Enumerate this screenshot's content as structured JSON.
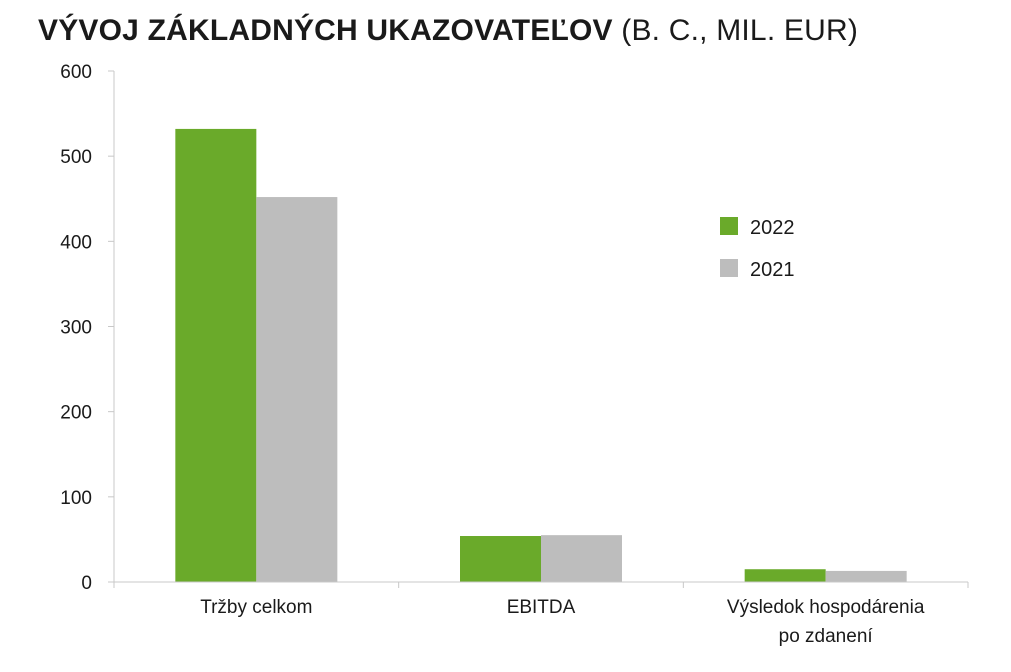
{
  "chart_data": {
    "type": "bar",
    "title_bold": "VÝVOJ ZÁKLADNÝCH UKAZOVATEĽOV",
    "title_rest": "(B. C., MIL. EUR)",
    "categories": [
      [
        "Tržby celkom"
      ],
      [
        "EBITDA"
      ],
      [
        "Výsledok hospodárenia",
        "po zdanení"
      ]
    ],
    "series": [
      {
        "name": "2022",
        "color": "#6aaa2a",
        "values": [
          532,
          54,
          15
        ]
      },
      {
        "name": "2021",
        "color": "#bdbdbd",
        "values": [
          452,
          55,
          13
        ]
      }
    ],
    "ylim": [
      0,
      600
    ],
    "yticks": [
      0,
      100,
      200,
      300,
      400,
      500,
      600
    ],
    "grid": false,
    "legend_position": "right"
  }
}
